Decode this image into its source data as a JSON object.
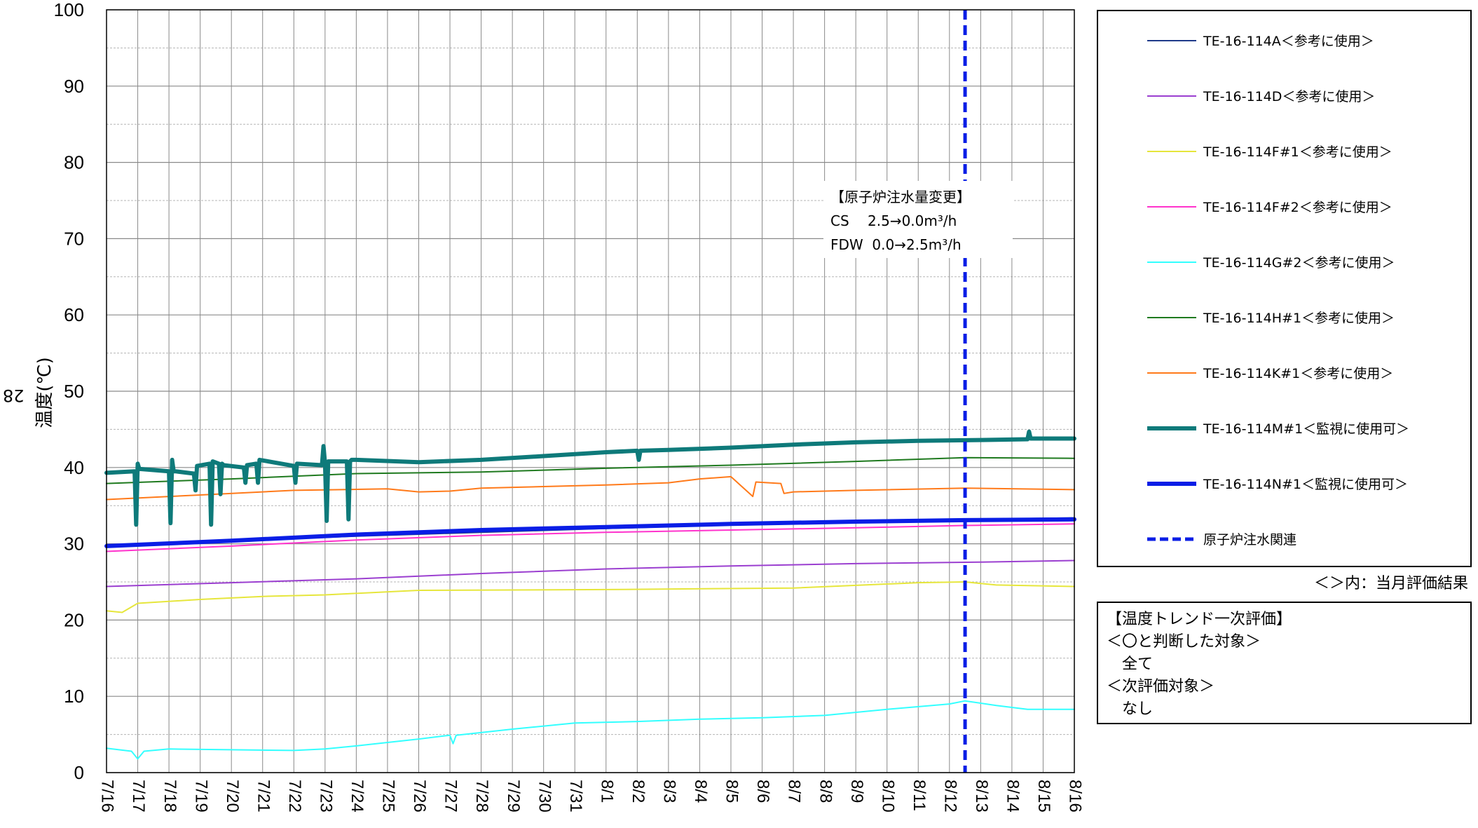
{
  "chart_data": {
    "type": "line",
    "ylabel": "温度(℃)",
    "ylim": [
      0,
      100
    ],
    "yticks": [
      0,
      10,
      20,
      30,
      40,
      50,
      60,
      70,
      80,
      90,
      100
    ],
    "categories": [
      "7/16",
      "7/17",
      "7/18",
      "7/19",
      "7/20",
      "7/21",
      "7/22",
      "7/23",
      "7/24",
      "7/25",
      "7/26",
      "7/27",
      "7/28",
      "7/29",
      "7/30",
      "7/31",
      "8/1",
      "8/2",
      "8/3",
      "8/4",
      "8/5",
      "8/6",
      "8/7",
      "8/8",
      "8/9",
      "8/10",
      "8/11",
      "8/12",
      "8/13",
      "8/14",
      "8/15",
      "8/16"
    ],
    "grid": true,
    "legend_position": "right",
    "series": [
      {
        "name": "TE-16-114A＜参考に使用＞",
        "color": "#1f3a8a",
        "width": 2,
        "dash": false,
        "x": [
          0,
          8,
          16,
          24,
          27.5,
          31
        ],
        "y": [
          29.8,
          31,
          32,
          33,
          33.2,
          33.4
        ]
      },
      {
        "name": "TE-16-114D＜参考に使用＞",
        "color": "#9b3fd0",
        "width": 2,
        "dash": false,
        "x": [
          0,
          4,
          8,
          12,
          16,
          20,
          24,
          28,
          31
        ],
        "y": [
          24.4,
          24.9,
          25.4,
          26.1,
          26.7,
          27.1,
          27.4,
          27.6,
          27.8
        ]
      },
      {
        "name": "TE-16-114F#1＜参考に使用＞",
        "color": "#e6e63c",
        "width": 2,
        "dash": false,
        "x": [
          0,
          0.5,
          1,
          3,
          5,
          7,
          10,
          16,
          22,
          26,
          27.5,
          28.5,
          31
        ],
        "y": [
          21.2,
          21,
          22.2,
          22.7,
          23.1,
          23.3,
          23.9,
          24,
          24.2,
          24.9,
          25,
          24.6,
          24.4
        ]
      },
      {
        "name": "TE-16-114F#2＜参考に使用＞",
        "color": "#ff33cc",
        "width": 2,
        "dash": false,
        "x": [
          0,
          4,
          8,
          12,
          16,
          20,
          24,
          27.5,
          31
        ],
        "y": [
          29,
          29.7,
          30.5,
          31.1,
          31.5,
          31.8,
          32.1,
          32.4,
          32.6
        ]
      },
      {
        "name": "TE-16-114G#2＜参考に使用＞",
        "color": "#33ffff",
        "width": 2,
        "dash": false,
        "x": [
          0,
          0.8,
          1,
          1.2,
          2,
          4,
          6,
          7,
          8,
          10,
          11,
          11.1,
          11.2,
          13,
          15,
          17,
          19,
          21,
          23,
          25,
          27,
          27.5,
          28.5,
          29.5,
          31
        ],
        "y": [
          3.2,
          2.8,
          1.8,
          2.8,
          3.1,
          3,
          2.9,
          3.1,
          3.5,
          4.4,
          4.9,
          3.8,
          4.9,
          5.7,
          6.5,
          6.7,
          7,
          7.2,
          7.5,
          8.3,
          9,
          9.4,
          8.8,
          8.3,
          8.3
        ]
      },
      {
        "name": "TE-16-114H#1＜参考に使用＞",
        "color": "#1f7a1f",
        "width": 2,
        "dash": false,
        "x": [
          0,
          4,
          8,
          12,
          16,
          20,
          24,
          27.5,
          31
        ],
        "y": [
          37.9,
          38.5,
          39.2,
          39.4,
          39.9,
          40.3,
          40.8,
          41.3,
          41.2
        ]
      },
      {
        "name": "TE-16-114K#1＜参考に使用＞",
        "color": "#ff7a1a",
        "width": 2,
        "dash": false,
        "x": [
          0,
          3,
          6,
          7.5,
          9,
          10,
          11,
          12,
          14,
          16,
          18,
          19,
          20,
          20.7,
          20.8,
          21.6,
          21.7,
          22,
          24,
          27.5,
          31
        ],
        "y": [
          35.8,
          36.4,
          37,
          37.1,
          37.2,
          36.8,
          36.9,
          37.3,
          37.5,
          37.7,
          38,
          38.5,
          38.8,
          36.2,
          38.1,
          37.9,
          36.6,
          36.8,
          37,
          37.3,
          37.1
        ]
      },
      {
        "name": "TE-16-114M#1＜監視に使用可＞",
        "color": "#0e7a7a",
        "width": 6,
        "dash": false,
        "x": [
          0,
          0.9,
          0.95,
          1,
          1.05,
          1.1,
          2,
          2.05,
          2.1,
          2.15,
          2.2,
          2.8,
          2.85,
          2.9,
          3.3,
          3.35,
          3.4,
          3.6,
          3.65,
          3.7,
          3.75,
          4.4,
          4.45,
          4.5,
          4.8,
          4.85,
          4.9,
          6,
          6.05,
          6.1,
          6.9,
          6.95,
          7,
          7.05,
          7.1,
          7.7,
          7.75,
          7.8,
          7.85,
          8,
          10,
          12,
          14,
          16,
          17,
          17.05,
          17.1,
          18,
          20,
          22,
          24,
          26,
          28,
          29.5,
          29.55,
          29.6,
          31
        ],
        "y": [
          39.3,
          39.5,
          32.5,
          40.5,
          39.8,
          39.8,
          39.5,
          32.7,
          41,
          39.5,
          39.5,
          39.2,
          37,
          40.2,
          40.5,
          32.5,
          40.8,
          40.5,
          36.5,
          40.5,
          40.3,
          40,
          38,
          40.3,
          40.5,
          38,
          41,
          40.2,
          38,
          40.5,
          40.3,
          42.8,
          40.5,
          33,
          40.8,
          40.8,
          33.2,
          40.8,
          41,
          41,
          40.7,
          41,
          41.5,
          42,
          42.2,
          41,
          42.2,
          42.3,
          42.6,
          43,
          43.3,
          43.5,
          43.6,
          43.7,
          44.7,
          43.8,
          43.8
        ]
      },
      {
        "name": "TE-16-114N#1＜監視に使用可＞",
        "color": "#0a1ee6",
        "width": 6,
        "dash": false,
        "x": [
          0,
          4,
          8,
          12,
          16,
          20,
          24,
          27.5,
          31
        ],
        "y": [
          29.7,
          30.4,
          31.2,
          31.8,
          32.2,
          32.6,
          32.9,
          33.1,
          33.2
        ]
      },
      {
        "name": "原子炉注水関連",
        "color": "#0a1ee6",
        "width": 5,
        "dash": true,
        "vertical_x": 27.5
      }
    ],
    "annotations": [
      "【原子炉注水量変更】",
      "CS　 2.5→0.0m³/h",
      "FDW  0.0→2.5m³/h"
    ]
  },
  "side_number": "28",
  "legend_note": "＜＞内：当月評価結果",
  "evaluation": {
    "title": "【温度トレンド一次評価】",
    "lines": [
      "＜〇と判断した対象＞",
      "　全て",
      "＜次評価対象＞",
      "　なし"
    ]
  }
}
